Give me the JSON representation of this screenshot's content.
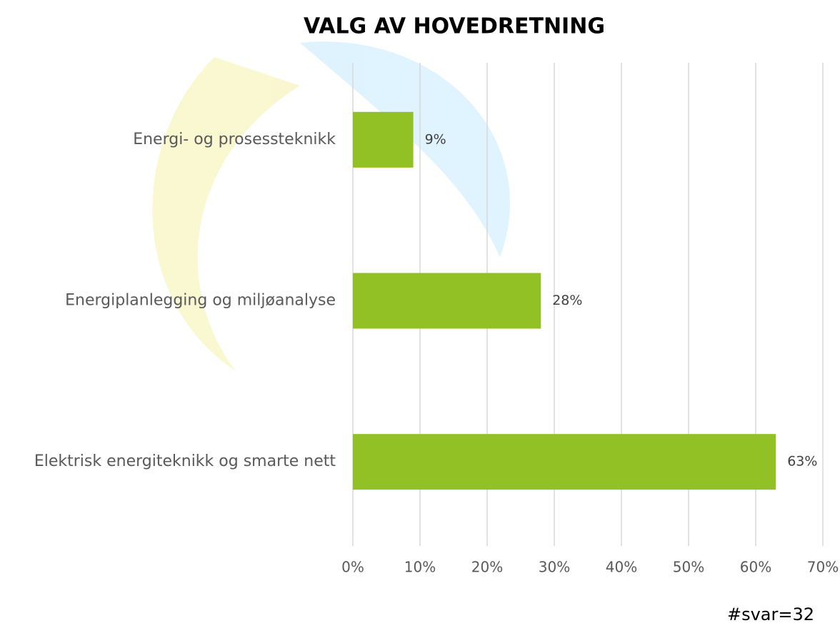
{
  "chart_data": {
    "type": "hbar",
    "title": "VALG AV HOVEDRETNING",
    "categories": [
      "Energi- og prosessteknikk",
      "Energiplanlegging og miljøanalyse",
      "Elektrisk energiteknikk og smarte nett"
    ],
    "values": [
      9,
      28,
      63
    ],
    "value_labels": [
      "9%",
      "28%",
      "63%"
    ],
    "color": "#92c125",
    "xlim": [
      0,
      70
    ],
    "xticks": [
      {
        "value": 0,
        "label": "0%"
      },
      {
        "value": 10,
        "label": "10%"
      },
      {
        "value": 20,
        "label": "20%"
      },
      {
        "value": 30,
        "label": "30%"
      },
      {
        "value": 40,
        "label": "40%"
      },
      {
        "value": 50,
        "label": "50%"
      },
      {
        "value": 60,
        "label": "60%"
      },
      {
        "value": 70,
        "label": "70%"
      }
    ],
    "grid": true,
    "note": "#svar=32"
  }
}
